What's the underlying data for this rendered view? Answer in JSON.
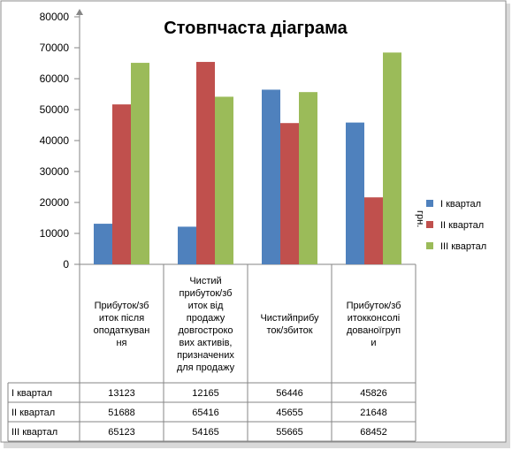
{
  "chart_data": {
    "type": "bar",
    "title": "Стовпчаста діаграма",
    "ylabel": "грн.",
    "ylim": [
      0,
      80000
    ],
    "yticks": [
      0,
      10000,
      20000,
      30000,
      40000,
      50000,
      60000,
      70000,
      80000
    ],
    "categories": [
      [
        "Прибуток/зб",
        "иток після",
        "оподаткуван",
        "ня"
      ],
      [
        "Чистий",
        "прибуток/зб",
        "иток від",
        "продажу",
        "довгостроко",
        "вих активів,",
        "призначених",
        "для продажу"
      ],
      [
        "Чистийприбу",
        "ток/збиток"
      ],
      [
        "Прибуток/зб",
        "итокконсолі",
        "дованоїгруп",
        "и"
      ]
    ],
    "series": [
      {
        "name": "I квартал",
        "color": "#4f81bd",
        "values": [
          13123,
          12165,
          56446,
          45826
        ]
      },
      {
        "name": "II квартал",
        "color": "#c0504d",
        "values": [
          51688,
          65416,
          45655,
          21648
        ]
      },
      {
        "name": "III квартал",
        "color": "#9bbb59",
        "values": [
          65123,
          54165,
          55665,
          68452
        ]
      }
    ],
    "legend": "right",
    "grid": false,
    "data_table": true
  }
}
